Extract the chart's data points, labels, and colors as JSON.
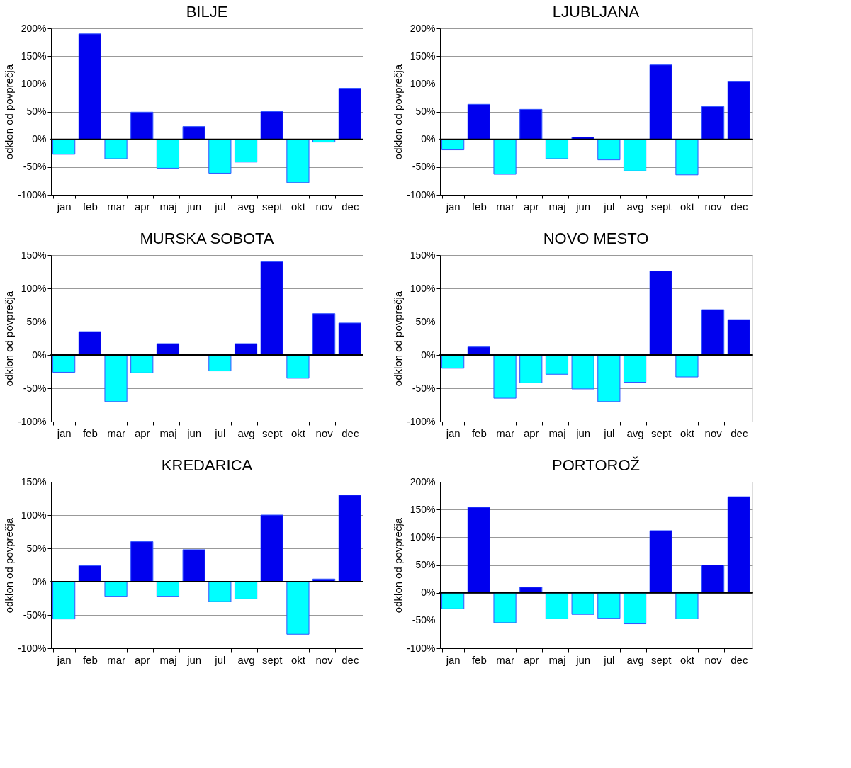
{
  "chart_data": [
    {
      "type": "bar",
      "title": "BILJE",
      "ylabel": "odklon od povprečja",
      "categories": [
        "jan",
        "feb",
        "mar",
        "apr",
        "maj",
        "jun",
        "jul",
        "avg",
        "sept",
        "okt",
        "nov",
        "dec"
      ],
      "values": [
        -27,
        190,
        -35,
        49,
        -52,
        23,
        -61,
        -41,
        50,
        -78,
        -5,
        92
      ],
      "colors": [
        "#00ffff",
        "#0000ee",
        "#00ffff",
        "#0000ee",
        "#00ffff",
        "#0000ee",
        "#00ffff",
        "#00ffff",
        "#0000ee",
        "#00ffff",
        "#00ffff",
        "#0000ee"
      ],
      "ylim": [
        -100,
        200
      ],
      "yticks": [
        {
          "value": -100,
          "label": "-100%"
        },
        {
          "value": -50,
          "label": "-50%"
        },
        {
          "value": 0,
          "label": "0%"
        },
        {
          "value": 50,
          "label": "50%"
        },
        {
          "value": 100,
          "label": "100%"
        },
        {
          "value": 150,
          "label": "150%"
        },
        {
          "value": 200,
          "label": "200%"
        }
      ],
      "grid": "y",
      "ref_lines": [
        {
          "axis": "y",
          "value": 0,
          "color": "#000000"
        }
      ]
    },
    {
      "type": "bar",
      "title": "LJUBLJANA",
      "ylabel": "odklon od povprečja",
      "categories": [
        "jan",
        "feb",
        "mar",
        "apr",
        "maj",
        "jun",
        "jul",
        "avg",
        "sept",
        "okt",
        "nov",
        "dec"
      ],
      "values": [
        -19,
        63,
        -63,
        54,
        -35,
        4,
        -37,
        -57,
        134,
        -64,
        59,
        104
      ],
      "colors": [
        "#00ffff",
        "#0000ee",
        "#00ffff",
        "#0000ee",
        "#00ffff",
        "#0000ee",
        "#00ffff",
        "#00ffff",
        "#0000ee",
        "#00ffff",
        "#0000ee",
        "#0000ee"
      ],
      "ylim": [
        -100,
        200
      ],
      "yticks": [
        {
          "value": -100,
          "label": "-100%"
        },
        {
          "value": -50,
          "label": "-50%"
        },
        {
          "value": 0,
          "label": "0%"
        },
        {
          "value": 50,
          "label": "50%"
        },
        {
          "value": 100,
          "label": "100%"
        },
        {
          "value": 150,
          "label": "150%"
        },
        {
          "value": 200,
          "label": "200%"
        }
      ],
      "grid": "y",
      "ref_lines": [
        {
          "axis": "y",
          "value": 0,
          "color": "#000000"
        }
      ]
    },
    {
      "type": "bar",
      "title": "MURSKA SOBOTA",
      "ylabel": "odklon od povprečja",
      "categories": [
        "jan",
        "feb",
        "mar",
        "apr",
        "maj",
        "jun",
        "jul",
        "avg",
        "sept",
        "okt",
        "nov",
        "dec"
      ],
      "values": [
        -26,
        35,
        -70,
        -27,
        17,
        null,
        -24,
        17,
        140,
        -35,
        62,
        48
      ],
      "colors": [
        "#00ffff",
        "#0000ee",
        "#00ffff",
        "#00ffff",
        "#0000ee",
        null,
        "#00ffff",
        "#0000ee",
        "#0000ee",
        "#00ffff",
        "#0000ee",
        "#0000ee"
      ],
      "ylim": [
        -100,
        150
      ],
      "yticks": [
        {
          "value": -100,
          "label": "-100%"
        },
        {
          "value": -50,
          "label": "-50%"
        },
        {
          "value": 0,
          "label": "0%"
        },
        {
          "value": 50,
          "label": "50%"
        },
        {
          "value": 100,
          "label": "100%"
        },
        {
          "value": 150,
          "label": "150%"
        }
      ],
      "grid": "y",
      "ref_lines": [
        {
          "axis": "y",
          "value": 0,
          "color": "#000000"
        }
      ]
    },
    {
      "type": "bar",
      "title": "NOVO MESTO",
      "ylabel": "odklon od povprečja",
      "categories": [
        "jan",
        "feb",
        "mar",
        "apr",
        "maj",
        "jun",
        "jul",
        "avg",
        "sept",
        "okt",
        "nov",
        "dec"
      ],
      "values": [
        -20,
        12,
        -65,
        -42,
        -29,
        -51,
        -70,
        -41,
        126,
        -33,
        68,
        53
      ],
      "colors": [
        "#00ffff",
        "#0000ee",
        "#00ffff",
        "#00ffff",
        "#00ffff",
        "#00ffff",
        "#00ffff",
        "#00ffff",
        "#0000ee",
        "#00ffff",
        "#0000ee",
        "#0000ee"
      ],
      "ylim": [
        -100,
        150
      ],
      "yticks": [
        {
          "value": -100,
          "label": "-100%"
        },
        {
          "value": -50,
          "label": "-50%"
        },
        {
          "value": 0,
          "label": "0%"
        },
        {
          "value": 50,
          "label": "50%"
        },
        {
          "value": 100,
          "label": "100%"
        },
        {
          "value": 150,
          "label": "150%"
        }
      ],
      "grid": "y",
      "ref_lines": [
        {
          "axis": "y",
          "value": 0,
          "color": "#000000"
        }
      ]
    },
    {
      "type": "bar",
      "title": "KREDARICA",
      "ylabel": "odklon od povprečja",
      "categories": [
        "jan",
        "feb",
        "mar",
        "apr",
        "maj",
        "jun",
        "jul",
        "avg",
        "sept",
        "okt",
        "nov",
        "dec"
      ],
      "values": [
        -56,
        24,
        -22,
        60,
        -22,
        48,
        -30,
        -26,
        100,
        -79,
        4,
        130
      ],
      "colors": [
        "#00ffff",
        "#0000ee",
        "#00ffff",
        "#0000ee",
        "#00ffff",
        "#0000ee",
        "#00ffff",
        "#00ffff",
        "#0000ee",
        "#00ffff",
        "#0000ee",
        "#0000ee"
      ],
      "ylim": [
        -100,
        150
      ],
      "yticks": [
        {
          "value": -100,
          "label": "-100%"
        },
        {
          "value": -50,
          "label": "-50%"
        },
        {
          "value": 0,
          "label": "0%"
        },
        {
          "value": 50,
          "label": "50%"
        },
        {
          "value": 100,
          "label": "100%"
        },
        {
          "value": 150,
          "label": "150%"
        }
      ],
      "grid": "y",
      "ref_lines": [
        {
          "axis": "y",
          "value": 0,
          "color": "#000000"
        }
      ]
    },
    {
      "type": "bar",
      "title": "PORTOROŽ",
      "ylabel": "odklon od povprečja",
      "categories": [
        "jan",
        "feb",
        "mar",
        "apr",
        "maj",
        "jun",
        "jul",
        "avg",
        "sept",
        "okt",
        "nov",
        "dec"
      ],
      "values": [
        -29,
        154,
        -54,
        10,
        -47,
        -39,
        -46,
        -56,
        112,
        -47,
        50,
        173
      ],
      "colors": [
        "#00ffff",
        "#0000ee",
        "#00ffff",
        "#0000ee",
        "#00ffff",
        "#00ffff",
        "#00ffff",
        "#00ffff",
        "#0000ee",
        "#00ffff",
        "#0000ee",
        "#0000ee"
      ],
      "ylim": [
        -100,
        200
      ],
      "yticks": [
        {
          "value": -100,
          "label": "-100%"
        },
        {
          "value": -50,
          "label": "-50%"
        },
        {
          "value": 0,
          "label": "0%"
        },
        {
          "value": 50,
          "label": "50%"
        },
        {
          "value": 100,
          "label": "100%"
        },
        {
          "value": 150,
          "label": "150%"
        },
        {
          "value": 200,
          "label": "200%"
        }
      ],
      "grid": "y",
      "ref_lines": [
        {
          "axis": "y",
          "value": 0,
          "color": "#000000"
        }
      ]
    }
  ]
}
